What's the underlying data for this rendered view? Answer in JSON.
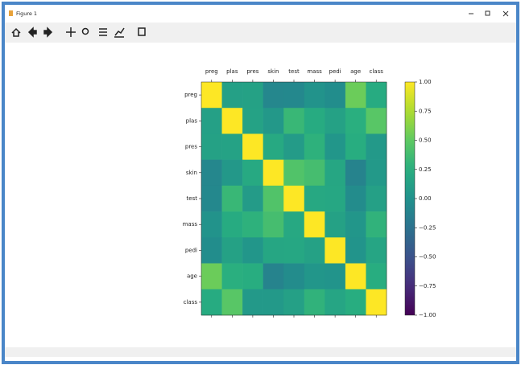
{
  "window": {
    "title": "Figure 1"
  },
  "chart_data": {
    "type": "heatmap",
    "x": [
      "preg",
      "plas",
      "pres",
      "skin",
      "test",
      "mass",
      "pedi",
      "age",
      "class"
    ],
    "y": [
      "preg",
      "plas",
      "pres",
      "skin",
      "test",
      "mass",
      "pedi",
      "age",
      "class"
    ],
    "values": [
      [
        1,
        0.13,
        0.14,
        -0.08,
        -0.07,
        0.02,
        -0.03,
        0.54,
        0.22
      ],
      [
        0.13,
        1,
        0.15,
        0.06,
        0.33,
        0.22,
        0.14,
        0.26,
        0.47
      ],
      [
        0.14,
        0.15,
        1,
        0.21,
        0.09,
        0.28,
        0.04,
        0.24,
        0.07
      ],
      [
        -0.08,
        0.06,
        0.21,
        1,
        0.44,
        0.39,
        0.18,
        -0.11,
        0.07
      ],
      [
        -0.07,
        0.33,
        0.09,
        0.44,
        1,
        0.2,
        0.19,
        -0.04,
        0.13
      ],
      [
        0.02,
        0.22,
        0.28,
        0.39,
        0.2,
        1,
        0.14,
        0.04,
        0.29
      ],
      [
        -0.03,
        0.14,
        0.04,
        0.18,
        0.19,
        0.14,
        1,
        0.03,
        0.17
      ],
      [
        0.54,
        0.26,
        0.24,
        -0.11,
        -0.04,
        0.04,
        0.03,
        1,
        0.24
      ],
      [
        0.22,
        0.47,
        0.07,
        0.07,
        0.13,
        0.29,
        0.17,
        0.24,
        1
      ]
    ],
    "colormap": "viridis",
    "clim": [
      -1,
      1
    ],
    "cticks": [
      {
        "value": 1,
        "label": "1.00"
      },
      {
        "value": 0.75,
        "label": "0.75"
      },
      {
        "value": 0.5,
        "label": "0.50"
      },
      {
        "value": 0.25,
        "label": "0.25"
      },
      {
        "value": 0,
        "label": "0.00"
      },
      {
        "value": -0.25,
        "label": "−0.25"
      },
      {
        "value": -0.5,
        "label": "−0.50"
      },
      {
        "value": -0.75,
        "label": "−0.75"
      },
      {
        "value": -1,
        "label": "−1.00"
      }
    ]
  }
}
